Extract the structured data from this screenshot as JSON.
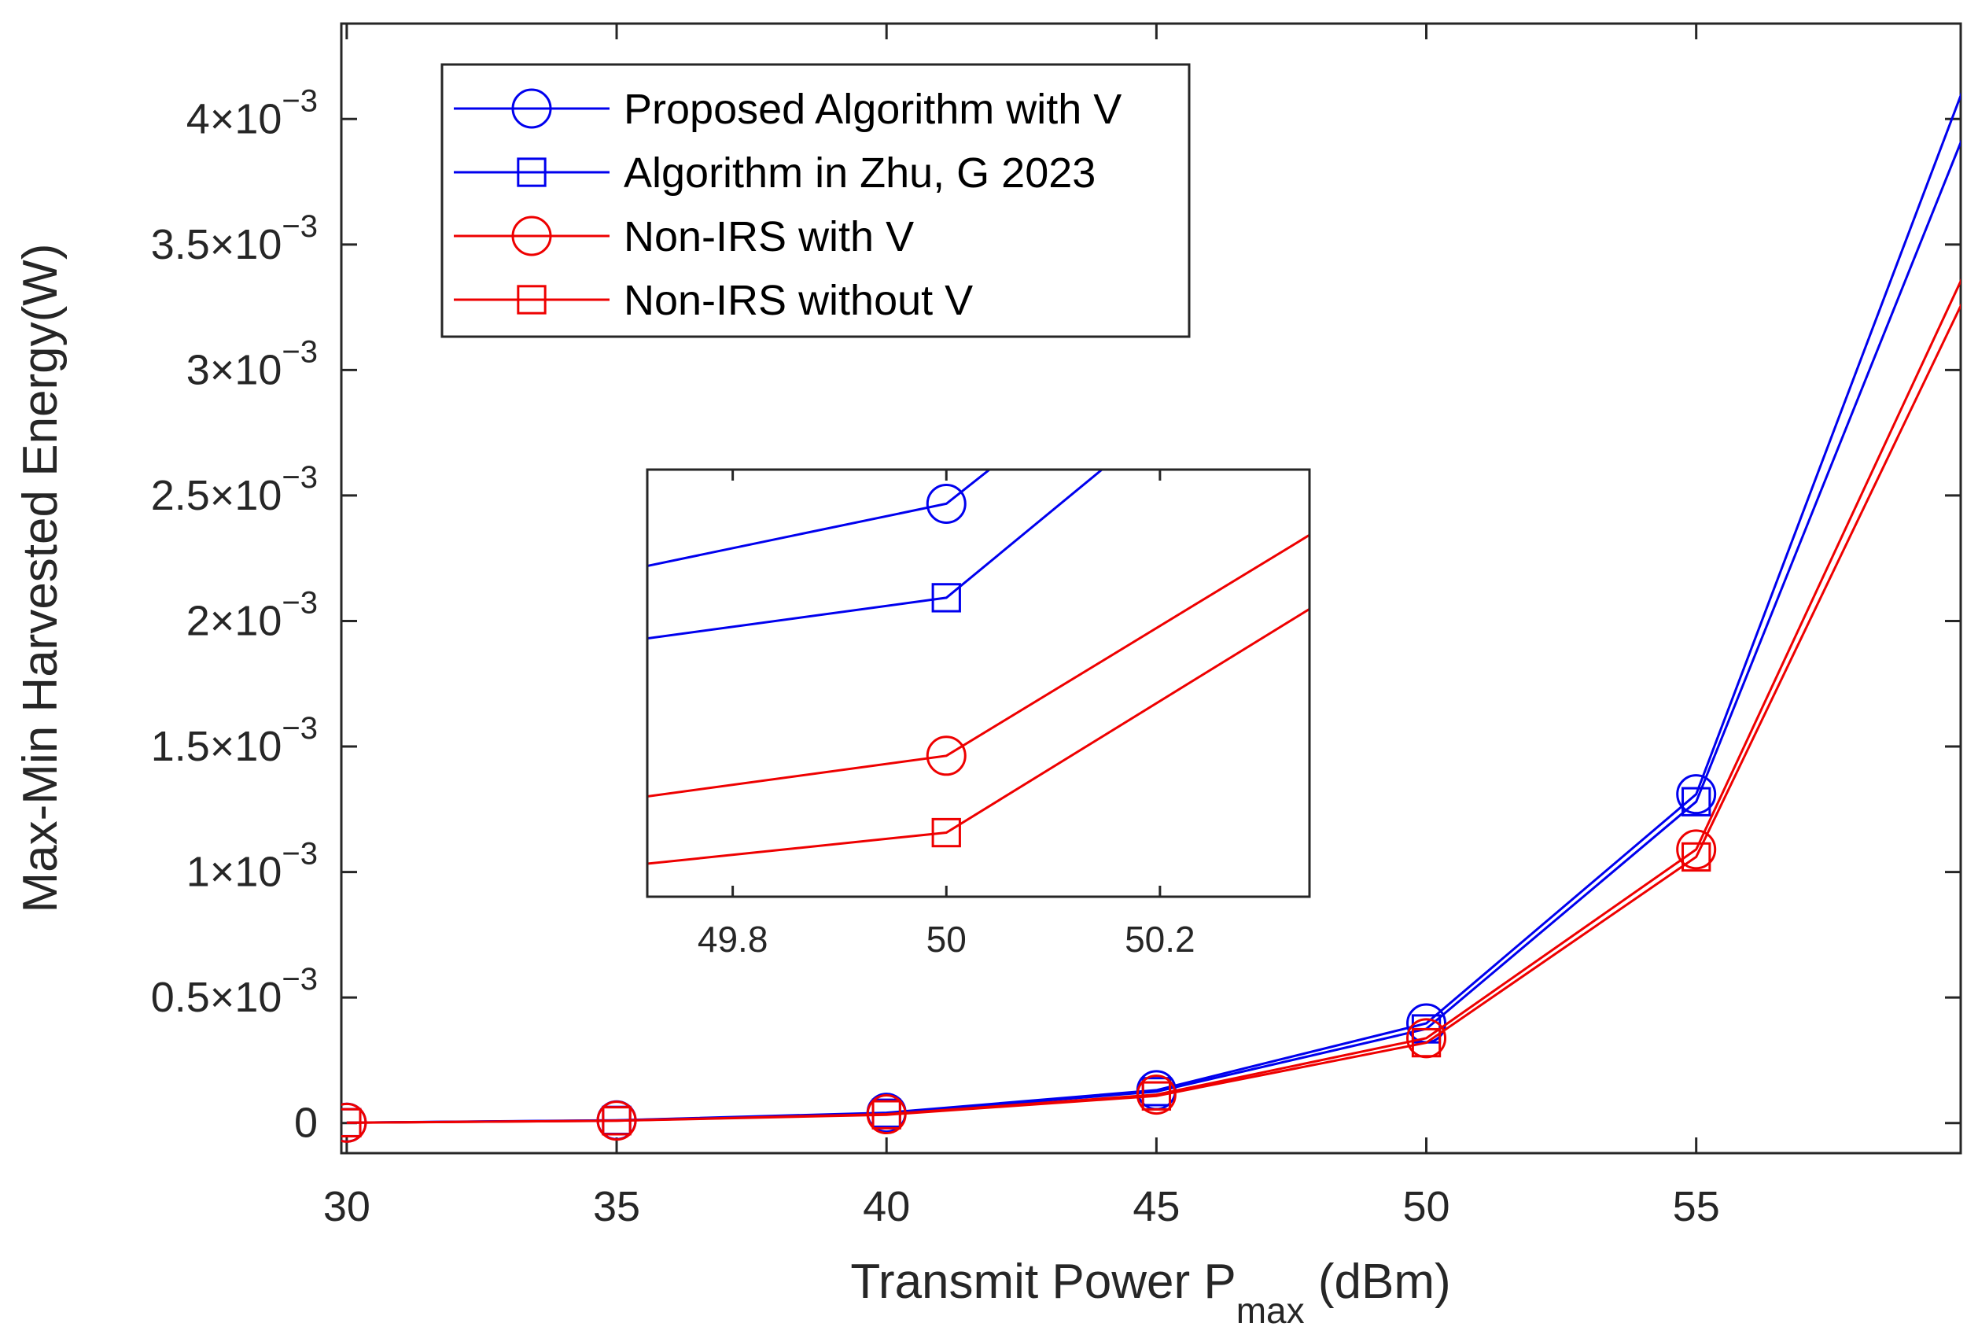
{
  "chart_data": {
    "type": "line",
    "xlabel": {
      "main": "Transmit Power P",
      "sub": "max",
      "unit": " (dBm)"
    },
    "ylabel": "Max-Min Harvested Energy(W)",
    "xlim": [
      29.9,
      59.9
    ],
    "ylim": [
      -0.00012,
      0.00438
    ],
    "x_ticks": [
      30,
      35,
      40,
      45,
      50,
      55
    ],
    "y_ticks": [
      {
        "value": 0,
        "mant": "0",
        "exp": ""
      },
      {
        "value": 0.0005,
        "mant": "0.5×10",
        "exp": "−3"
      },
      {
        "value": 0.001,
        "mant": "1×10",
        "exp": "−3"
      },
      {
        "value": 0.0015,
        "mant": "1.5×10",
        "exp": "−3"
      },
      {
        "value": 0.002,
        "mant": "2×10",
        "exp": "−3"
      },
      {
        "value": 0.0025,
        "mant": "2.5×10",
        "exp": "−3"
      },
      {
        "value": 0.003,
        "mant": "3×10",
        "exp": "−3"
      },
      {
        "value": 0.0035,
        "mant": "3.5×10",
        "exp": "−3"
      },
      {
        "value": 0.004,
        "mant": "4×10",
        "exp": "−3"
      }
    ],
    "legend_position": "top-left",
    "series": [
      {
        "name": "Proposed Algorithm with V",
        "color": "#0000ee",
        "marker": "circle",
        "x": [
          30,
          35,
          40,
          45,
          50,
          55,
          60
        ],
        "y": [
          1.5e-06,
          1.1e-05,
          4.1e-05,
          0.000131,
          0.000397,
          0.00131,
          0.00415
        ]
      },
      {
        "name": "Algorithm in Zhu, G 2023",
        "color": "#0000ee",
        "marker": "square",
        "x": [
          30,
          35,
          40,
          45,
          50,
          55,
          60
        ],
        "y": [
          1.4e-06,
          1.05e-05,
          3.9e-05,
          0.000125,
          0.000375,
          0.00128,
          0.00396
        ]
      },
      {
        "name": "Non-IRS with V",
        "color": "#ee0000",
        "marker": "circle",
        "x": [
          30,
          35,
          40,
          45,
          50,
          55,
          60
        ],
        "y": [
          1.2e-06,
          9.5e-06,
          3.5e-05,
          0.000113,
          0.000338,
          0.00109,
          0.0034
        ]
      },
      {
        "name": "Non-IRS without V",
        "color": "#ee0000",
        "marker": "square",
        "x": [
          30,
          35,
          40,
          45,
          50,
          55,
          60
        ],
        "y": [
          1.1e-06,
          9e-06,
          3.3e-05,
          0.000108,
          0.00032,
          0.00106,
          0.0033
        ]
      }
    ],
    "inset": {
      "xlim": [
        49.72,
        50.34
      ],
      "x_ticks": [
        {
          "value": 49.8,
          "label": "49.8"
        },
        {
          "value": 50.0,
          "label": "50"
        },
        {
          "value": 50.2,
          "label": "50.2"
        }
      ],
      "ylim": [
        0.000305,
        0.000405
      ],
      "series": [
        {
          "color": "#0000ee",
          "marker": "circle",
          "x": [
            49.5,
            50,
            50.5
          ],
          "y": [
            0.000371,
            0.000397,
            0.000496
          ]
        },
        {
          "color": "#0000ee",
          "marker": "square",
          "x": [
            49.5,
            50,
            50.5
          ],
          "y": [
            0.000358,
            0.000375,
            0.000478
          ]
        },
        {
          "color": "#ee0000",
          "marker": "circle",
          "x": [
            49.5,
            50,
            50.5
          ],
          "y": [
            0.000321,
            0.000338,
            0.000414
          ]
        },
        {
          "color": "#ee0000",
          "marker": "square",
          "x": [
            49.5,
            50,
            50.5
          ],
          "y": [
            0.000307,
            0.00032,
            0.000397
          ]
        }
      ]
    }
  }
}
